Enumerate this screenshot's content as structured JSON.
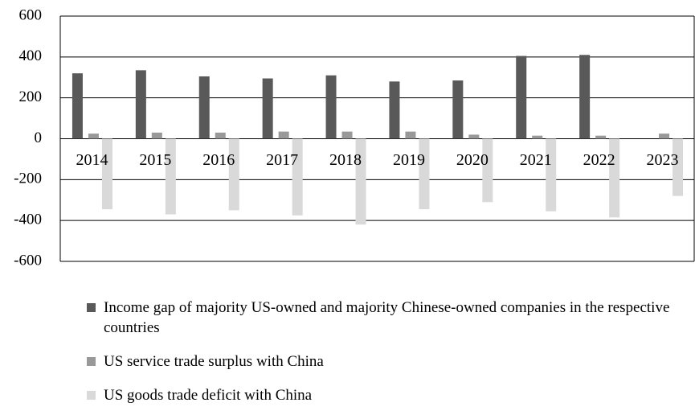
{
  "chart_data": {
    "type": "bar",
    "categories": [
      "2014",
      "2015",
      "2016",
      "2017",
      "2018",
      "2019",
      "2020",
      "2021",
      "2022",
      "2023"
    ],
    "series": [
      {
        "name": "Income gap of majority US-owned and majority Chinese-owned companies in the respective countries",
        "color": "#595959",
        "values": [
          320,
          335,
          305,
          295,
          310,
          280,
          285,
          405,
          410,
          null
        ]
      },
      {
        "name": "US service trade surplus with China",
        "color": "#999999",
        "values": [
          25,
          30,
          30,
          35,
          35,
          35,
          20,
          15,
          15,
          25
        ]
      },
      {
        "name": "US goods trade deficit with China",
        "color": "#d9d9d9",
        "values": [
          -345,
          -370,
          -350,
          -375,
          -420,
          -345,
          -310,
          -355,
          -385,
          -280
        ]
      }
    ],
    "ylim": [
      -600,
      600
    ],
    "yticks": [
      -600,
      -400,
      -200,
      0,
      200,
      400,
      600
    ],
    "grid": true,
    "legend": "bottom"
  }
}
